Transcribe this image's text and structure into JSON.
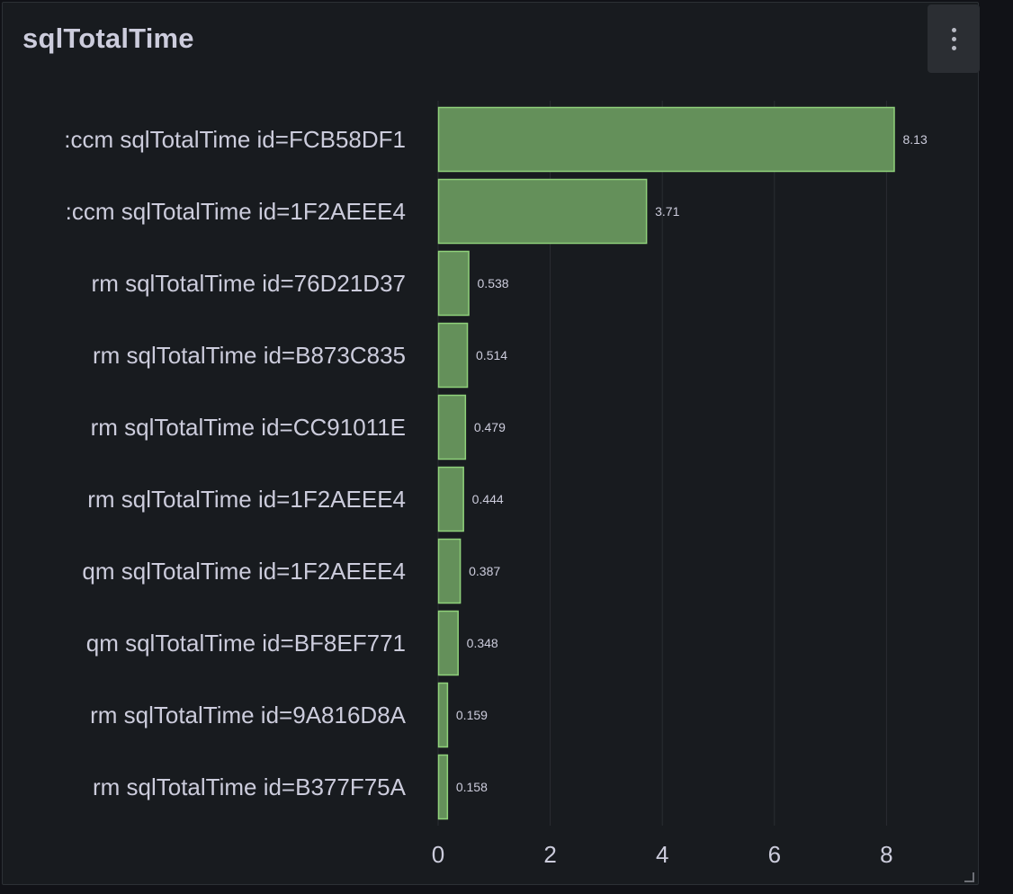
{
  "panel": {
    "title": "sqlTotalTime"
  },
  "icons": {
    "menu": "kebab-vertical-icon",
    "resize": "resize-corner-icon"
  },
  "colors": {
    "bar_fill": "#64905a",
    "bar_stroke": "#8fd17a",
    "grid": "#2a2d33",
    "text": "#ccccdc"
  },
  "chart_data": {
    "type": "bar",
    "orientation": "horizontal",
    "title": "sqlTotalTime",
    "categories": [
      ":ccm sqlTotalTime id=FCB58DF1",
      ":ccm sqlTotalTime id=1F2AEEE4",
      "rm sqlTotalTime id=76D21D37",
      "rm sqlTotalTime id=B873C835",
      "rm sqlTotalTime id=CC91011E",
      "rm sqlTotalTime id=1F2AEEE4",
      "qm sqlTotalTime id=1F2AEEE4",
      "qm sqlTotalTime id=BF8EF771",
      "rm sqlTotalTime id=9A816D8A",
      "rm sqlTotalTime id=B377F75A"
    ],
    "values": [
      8.13,
      3.71,
      0.538,
      0.514,
      0.479,
      0.444,
      0.387,
      0.348,
      0.159,
      0.158
    ],
    "value_labels": [
      "8.13",
      "3.71",
      "0.538",
      "0.514",
      "0.479",
      "0.444",
      "0.387",
      "0.348",
      "0.159",
      "0.158"
    ],
    "xticks": [
      0,
      2,
      4,
      6,
      8
    ],
    "xlim": [
      0,
      9.7
    ],
    "grid": true,
    "legend": "none"
  }
}
